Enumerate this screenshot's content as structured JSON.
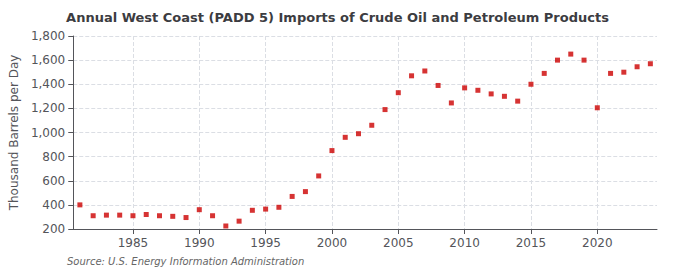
{
  "chart_data": {
    "type": "scatter",
    "title": "Annual West Coast (PADD 5) Imports of Crude Oil and Petroleum Products",
    "ylabel": "Thousand Barrels per Day",
    "annotations": [
      "Source: U.S. Energy Information Administration"
    ],
    "x": [
      1981,
      1982,
      1983,
      1984,
      1985,
      1986,
      1987,
      1988,
      1989,
      1990,
      1991,
      1992,
      1993,
      1994,
      1995,
      1996,
      1997,
      1998,
      1999,
      2000,
      2001,
      2002,
      2003,
      2004,
      2005,
      2006,
      2007,
      2008,
      2009,
      2010,
      2011,
      2012,
      2013,
      2014,
      2015,
      2016,
      2017,
      2018,
      2019,
      2020,
      2021,
      2022,
      2023,
      2024
    ],
    "values": [
      400,
      310,
      315,
      315,
      310,
      320,
      310,
      305,
      295,
      360,
      310,
      225,
      265,
      355,
      365,
      380,
      470,
      510,
      640,
      850,
      960,
      990,
      1060,
      1190,
      1330,
      1470,
      1510,
      1390,
      1245,
      1370,
      1350,
      1320,
      1300,
      1260,
      1400,
      1490,
      1600,
      1650,
      1600,
      1205,
      1490,
      1500,
      1545,
      1570
    ],
    "color": "#cc0000",
    "marker": "square",
    "xlim": [
      1980.5,
      2024.5
    ],
    "xticks": [
      1985,
      1990,
      1995,
      2000,
      2005,
      2010,
      2015,
      2020
    ],
    "ylim": [
      200,
      1800
    ],
    "yticks": [
      200,
      400,
      600,
      800,
      {
        "value": 1000,
        "label": "1,000"
      },
      {
        "value": 1200,
        "label": "1,200"
      },
      {
        "value": 1400,
        "label": "1,400"
      },
      {
        "value": 1600,
        "label": "1,600"
      },
      {
        "value": 1800,
        "label": "1,800"
      }
    ],
    "grid": true
  }
}
